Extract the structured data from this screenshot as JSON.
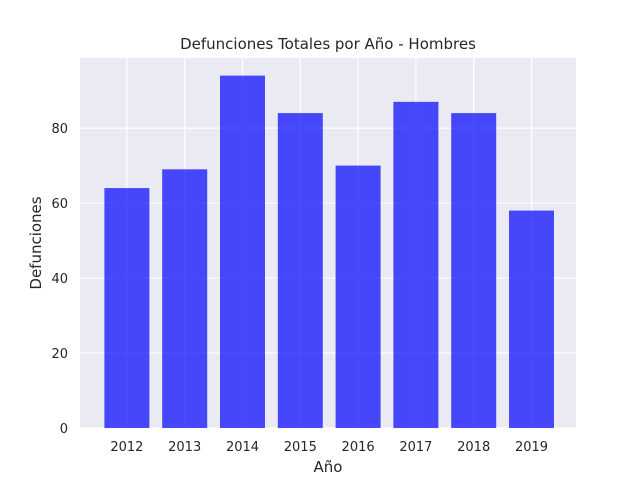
{
  "chart_data": {
    "type": "bar",
    "title": "Defunciones Totales por Año - Hombres",
    "xlabel": "Año",
    "ylabel": "Defunciones",
    "categories": [
      "2012",
      "2013",
      "2014",
      "2015",
      "2016",
      "2017",
      "2018",
      "2019"
    ],
    "values": [
      64,
      69,
      94,
      84,
      70,
      87,
      84,
      58
    ],
    "ylim": [
      0,
      98.7
    ],
    "yticks": [
      0,
      20,
      40,
      60,
      80
    ],
    "grid": true,
    "legend": "none",
    "colors": {
      "bar": "#0000ff",
      "plot_background": "#eaeaf2",
      "grid": "#ffffff",
      "text": "#262626"
    }
  }
}
